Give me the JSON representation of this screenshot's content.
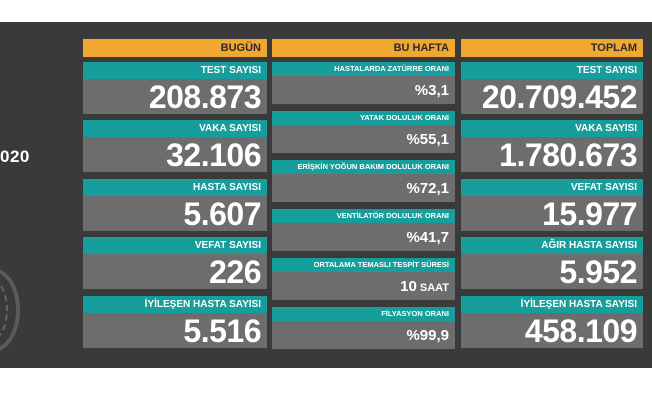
{
  "left_panel": {
    "date_fragment": "020"
  },
  "today": {
    "header": "BUGÜN",
    "items": [
      {
        "label": "TEST SAYISI",
        "value": "208.873"
      },
      {
        "label": "VAKA SAYISI",
        "value": "32.106"
      },
      {
        "label": "HASTA SAYISI",
        "value": "5.607"
      },
      {
        "label": "VEFAT SAYISI",
        "value": "226"
      },
      {
        "label": "İYİLEŞEN HASTA SAYISI",
        "value": "5.516"
      }
    ]
  },
  "week": {
    "header": "BU HAFTA",
    "items": [
      {
        "label": "HASTALARDA ZATÜRRE ORANI",
        "value": "%3,1"
      },
      {
        "label": "YATAK DOLULUK ORANI",
        "value": "%55,1"
      },
      {
        "label": "ERİŞKİN YOĞUN BAKIM DOLULUK ORANI",
        "value": "%72,1"
      },
      {
        "label": "VENTİLATÖR DOLULUK ORANI",
        "value": "%41,7"
      },
      {
        "label": "ORTALAMA TEMASLI TESPİT SÜRESİ",
        "value": "10",
        "unit": "SAAT"
      },
      {
        "label": "FİLYASYON ORANI",
        "value": "%99,9"
      }
    ]
  },
  "total": {
    "header": "TOPLAM",
    "items": [
      {
        "label": "TEST SAYISI",
        "value": "20.709.452"
      },
      {
        "label": "VAKA SAYISI",
        "value": "1.780.673"
      },
      {
        "label": "VEFAT SAYISI",
        "value": "15.977"
      },
      {
        "label": "AĞIR HASTA SAYISI",
        "value": "5.952"
      },
      {
        "label": "İYİLEŞEN HASTA SAYISI",
        "value": "458.109"
      }
    ]
  },
  "colors": {
    "header_bg": "#f0a830",
    "label_bg": "#169e9c",
    "value_bg": "#6d6d6d",
    "board_bg": "#3a3a3a"
  }
}
